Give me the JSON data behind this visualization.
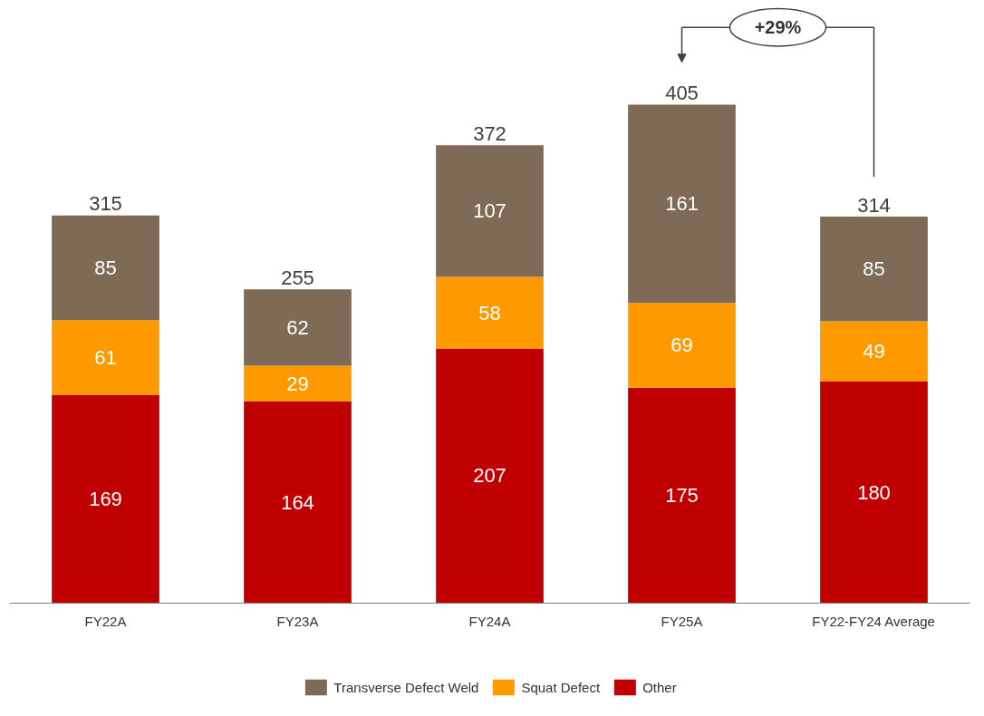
{
  "chart_data": {
    "type": "bar",
    "stacked": true,
    "categories": [
      "FY22A",
      "FY23A",
      "FY24A",
      "FY25A",
      "FY22-FY24 Average"
    ],
    "series": [
      {
        "name": "Other",
        "color": "#c00000",
        "values": [
          169,
          164,
          207,
          175,
          180
        ]
      },
      {
        "name": "Squat Defect",
        "color": "#ff9900",
        "values": [
          61,
          29,
          58,
          69,
          49
        ]
      },
      {
        "name": "Transverse Defect Weld",
        "color": "#7f6a56",
        "values": [
          85,
          62,
          107,
          161,
          85
        ]
      }
    ],
    "data_labels": true,
    "totals": [
      "315",
      "255",
      "372",
      "405",
      "314"
    ],
    "annotations": [
      "+29%"
    ],
    "legend": "bottom",
    "grid": false,
    "tick_labels": "x"
  }
}
